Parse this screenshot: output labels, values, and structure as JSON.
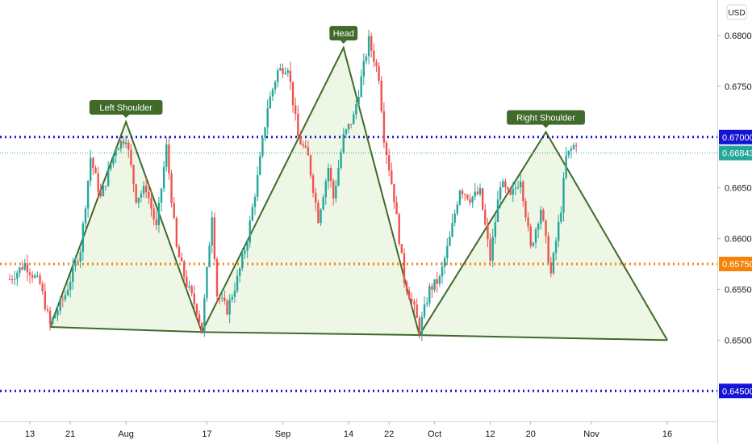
{
  "currency": "USD",
  "chart_data": {
    "type": "candlestick",
    "y_ticks": [
      "0.68000",
      "0.67500",
      "0.67000",
      "0.66500",
      "0.66000",
      "0.65500",
      "0.65000",
      "0.64500"
    ],
    "y_range": [
      0.642,
      0.6835
    ],
    "x_ticks": [
      {
        "label": "13",
        "day": 0
      },
      {
        "label": "21",
        "day": 8
      },
      {
        "label": "Aug",
        "day": 19
      },
      {
        "label": "17",
        "day": 35
      },
      {
        "label": "Sep",
        "day": 50
      },
      {
        "label": "14",
        "day": 63
      },
      {
        "label": "22",
        "day": 71
      },
      {
        "label": "Oct",
        "day": 80
      },
      {
        "label": "12",
        "day": 91
      },
      {
        "label": "20",
        "day": 99
      },
      {
        "label": "Nov",
        "day": 111
      },
      {
        "label": "16",
        "day": 126
      }
    ],
    "levels": [
      {
        "price": 0.67,
        "label": "0.67000",
        "color": "#1414d4",
        "style": "dotted"
      },
      {
        "price": 0.6575,
        "label": "0.65750",
        "color": "#f5820a",
        "style": "dotted"
      },
      {
        "price": 0.645,
        "label": "0.64500",
        "color": "#1414d4",
        "style": "dotted"
      }
    ],
    "last_price": {
      "price": 0.66843,
      "label": "0.66843",
      "color": "#26a69a"
    },
    "annotations": [
      {
        "text": "Left Shoulder",
        "day": 19,
        "price": 0.6715
      },
      {
        "text": "Head",
        "day": 62,
        "price": 0.6788
      },
      {
        "text": "Right Shoulder",
        "day": 102,
        "price": 0.6705
      }
    ],
    "pattern": [
      {
        "day": 4,
        "price": 0.6513
      },
      {
        "day": 19,
        "price": 0.6715
      },
      {
        "day": 34,
        "price": 0.6508
      },
      {
        "day": 62,
        "price": 0.6788
      },
      {
        "day": 77,
        "price": 0.6505
      },
      {
        "day": 102,
        "price": 0.6705
      },
      {
        "day": 126,
        "price": 0.65
      }
    ],
    "neckline": [
      {
        "day": 4,
        "price": 0.6513
      },
      {
        "day": 34,
        "price": 0.6508
      },
      {
        "day": 77,
        "price": 0.6505
      },
      {
        "day": 126,
        "price": 0.65
      }
    ],
    "colors": {
      "up": "#26a69a",
      "down": "#ef5350",
      "pattern": "#3f6a2a",
      "fill": "#e8f3dc",
      "tag": "#3f6a2a"
    },
    "anchors": [
      {
        "day": -4,
        "price": 0.656
      },
      {
        "day": -1,
        "price": 0.6575
      },
      {
        "day": 2,
        "price": 0.6555
      },
      {
        "day": 4,
        "price": 0.6515
      },
      {
        "day": 7,
        "price": 0.6545
      },
      {
        "day": 10,
        "price": 0.659
      },
      {
        "day": 12,
        "price": 0.668
      },
      {
        "day": 14,
        "price": 0.664
      },
      {
        "day": 17,
        "price": 0.669
      },
      {
        "day": 19,
        "price": 0.67
      },
      {
        "day": 21,
        "price": 0.664
      },
      {
        "day": 23,
        "price": 0.665
      },
      {
        "day": 25,
        "price": 0.661
      },
      {
        "day": 27,
        "price": 0.669
      },
      {
        "day": 29,
        "price": 0.659
      },
      {
        "day": 31,
        "price": 0.6555
      },
      {
        "day": 33,
        "price": 0.653
      },
      {
        "day": 34,
        "price": 0.651
      },
      {
        "day": 36,
        "price": 0.6625
      },
      {
        "day": 37,
        "price": 0.6545
      },
      {
        "day": 39,
        "price": 0.653
      },
      {
        "day": 41,
        "price": 0.656
      },
      {
        "day": 43,
        "price": 0.66
      },
      {
        "day": 45,
        "price": 0.666
      },
      {
        "day": 47,
        "price": 0.673
      },
      {
        "day": 49,
        "price": 0.6765
      },
      {
        "day": 51,
        "price": 0.677
      },
      {
        "day": 53,
        "price": 0.67
      },
      {
        "day": 55,
        "price": 0.668
      },
      {
        "day": 57,
        "price": 0.662
      },
      {
        "day": 59,
        "price": 0.667
      },
      {
        "day": 60,
        "price": 0.664
      },
      {
        "day": 62,
        "price": 0.67
      },
      {
        "day": 64,
        "price": 0.672
      },
      {
        "day": 66,
        "price": 0.677
      },
      {
        "day": 67,
        "price": 0.6795
      },
      {
        "day": 69,
        "price": 0.676
      },
      {
        "day": 70,
        "price": 0.67
      },
      {
        "day": 72,
        "price": 0.664
      },
      {
        "day": 74,
        "price": 0.656
      },
      {
        "day": 76,
        "price": 0.653
      },
      {
        "day": 77,
        "price": 0.651
      },
      {
        "day": 79,
        "price": 0.655
      },
      {
        "day": 81,
        "price": 0.656
      },
      {
        "day": 83,
        "price": 0.66
      },
      {
        "day": 85,
        "price": 0.665
      },
      {
        "day": 87,
        "price": 0.664
      },
      {
        "day": 89,
        "price": 0.6645
      },
      {
        "day": 91,
        "price": 0.658
      },
      {
        "day": 93,
        "price": 0.6655
      },
      {
        "day": 95,
        "price": 0.664
      },
      {
        "day": 97,
        "price": 0.666
      },
      {
        "day": 99,
        "price": 0.659
      },
      {
        "day": 101,
        "price": 0.663
      },
      {
        "day": 103,
        "price": 0.6565
      },
      {
        "day": 105,
        "price": 0.663
      },
      {
        "day": 106,
        "price": 0.668
      },
      {
        "day": 108,
        "price": 0.6695
      }
    ]
  }
}
